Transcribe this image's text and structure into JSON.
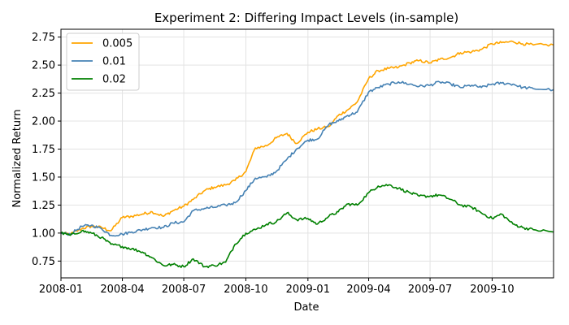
{
  "chart_data": {
    "type": "line",
    "title": "Experiment 2: Differing Impact Levels (in-sample)",
    "xlabel": "Date",
    "ylabel": "Normalized Return",
    "xlim": [
      "2008-01-01",
      "2009-12-31"
    ],
    "ylim": [
      0.6,
      2.82
    ],
    "grid": true,
    "legend_position": "top-left",
    "x_ticks": [
      {
        "date": "2008-01-01",
        "label": "2008-01"
      },
      {
        "date": "2008-04-01",
        "label": "2008-04"
      },
      {
        "date": "2008-07-01",
        "label": "2008-07"
      },
      {
        "date": "2008-10-01",
        "label": "2008-10"
      },
      {
        "date": "2009-01-01",
        "label": "2009-01"
      },
      {
        "date": "2009-04-01",
        "label": "2009-04"
      },
      {
        "date": "2009-07-01",
        "label": "2009-07"
      },
      {
        "date": "2009-10-01",
        "label": "2009-10"
      }
    ],
    "y_ticks": [
      {
        "value": 0.75,
        "label": "0.75"
      },
      {
        "value": 1.0,
        "label": "1.00"
      },
      {
        "value": 1.25,
        "label": "1.25"
      },
      {
        "value": 1.5,
        "label": "1.50"
      },
      {
        "value": 1.75,
        "label": "1.75"
      },
      {
        "value": 2.0,
        "label": "2.00"
      },
      {
        "value": 2.25,
        "label": "2.25"
      },
      {
        "value": 2.5,
        "label": "2.50"
      },
      {
        "value": 2.75,
        "label": "2.75"
      }
    ],
    "series": [
      {
        "name": "0.005",
        "color": "#ffa500",
        "x": [
          "2008-01-01",
          "2008-01-15",
          "2008-02-01",
          "2008-02-15",
          "2008-03-01",
          "2008-03-15",
          "2008-04-01",
          "2008-04-15",
          "2008-05-01",
          "2008-05-15",
          "2008-06-01",
          "2008-06-15",
          "2008-07-01",
          "2008-07-15",
          "2008-08-01",
          "2008-08-15",
          "2008-09-01",
          "2008-09-15",
          "2008-10-01",
          "2008-10-15",
          "2008-11-01",
          "2008-11-15",
          "2008-12-01",
          "2008-12-15",
          "2009-01-01",
          "2009-01-15",
          "2009-02-01",
          "2009-02-15",
          "2009-03-01",
          "2009-03-15",
          "2009-04-01",
          "2009-04-15",
          "2009-05-01",
          "2009-05-15",
          "2009-06-01",
          "2009-06-15",
          "2009-07-01",
          "2009-07-15",
          "2009-08-01",
          "2009-08-15",
          "2009-09-01",
          "2009-09-15",
          "2009-10-01",
          "2009-10-15",
          "2009-11-01",
          "2009-11-15",
          "2009-12-01",
          "2009-12-31"
        ],
        "values": [
          1.0,
          0.99,
          1.04,
          1.06,
          1.05,
          1.02,
          1.14,
          1.15,
          1.17,
          1.19,
          1.15,
          1.2,
          1.24,
          1.3,
          1.38,
          1.41,
          1.43,
          1.47,
          1.55,
          1.76,
          1.78,
          1.85,
          1.89,
          1.8,
          1.9,
          1.93,
          1.95,
          2.05,
          2.1,
          2.17,
          2.38,
          2.45,
          2.47,
          2.48,
          2.52,
          2.54,
          2.52,
          2.55,
          2.57,
          2.61,
          2.62,
          2.64,
          2.69,
          2.7,
          2.71,
          2.69,
          2.68,
          2.68
        ]
      },
      {
        "name": "0.01",
        "color": "#4682b4",
        "x": [
          "2008-01-01",
          "2008-01-15",
          "2008-02-01",
          "2008-02-15",
          "2008-03-01",
          "2008-03-15",
          "2008-04-01",
          "2008-04-15",
          "2008-05-01",
          "2008-05-15",
          "2008-06-01",
          "2008-06-15",
          "2008-07-01",
          "2008-07-15",
          "2008-08-01",
          "2008-08-15",
          "2008-09-01",
          "2008-09-15",
          "2008-10-01",
          "2008-10-15",
          "2008-11-01",
          "2008-11-15",
          "2008-12-01",
          "2008-12-15",
          "2009-01-01",
          "2009-01-15",
          "2009-02-01",
          "2009-02-15",
          "2009-03-01",
          "2009-03-15",
          "2009-04-01",
          "2009-04-15",
          "2009-05-01",
          "2009-05-15",
          "2009-06-01",
          "2009-06-15",
          "2009-07-01",
          "2009-07-15",
          "2009-08-01",
          "2009-08-15",
          "2009-09-01",
          "2009-09-15",
          "2009-10-01",
          "2009-10-15",
          "2009-11-01",
          "2009-11-15",
          "2009-12-01",
          "2009-12-31"
        ],
        "values": [
          1.0,
          0.99,
          1.06,
          1.07,
          1.04,
          0.98,
          0.99,
          1.01,
          1.03,
          1.05,
          1.05,
          1.09,
          1.1,
          1.2,
          1.22,
          1.23,
          1.25,
          1.27,
          1.38,
          1.49,
          1.5,
          1.55,
          1.66,
          1.75,
          1.83,
          1.84,
          1.97,
          2.0,
          2.05,
          2.08,
          2.26,
          2.3,
          2.33,
          2.35,
          2.33,
          2.31,
          2.32,
          2.35,
          2.33,
          2.3,
          2.32,
          2.3,
          2.33,
          2.34,
          2.33,
          2.3,
          2.29,
          2.28
        ]
      },
      {
        "name": "0.02",
        "color": "#008000",
        "x": [
          "2008-01-01",
          "2008-01-15",
          "2008-02-01",
          "2008-02-15",
          "2008-03-01",
          "2008-03-15",
          "2008-04-01",
          "2008-04-15",
          "2008-05-01",
          "2008-05-15",
          "2008-06-01",
          "2008-06-15",
          "2008-07-01",
          "2008-07-15",
          "2008-08-01",
          "2008-08-15",
          "2008-09-01",
          "2008-09-15",
          "2008-10-01",
          "2008-10-15",
          "2008-11-01",
          "2008-11-15",
          "2008-12-01",
          "2008-12-15",
          "2009-01-01",
          "2009-01-15",
          "2009-02-01",
          "2009-02-15",
          "2009-03-01",
          "2009-03-15",
          "2009-04-01",
          "2009-04-15",
          "2009-05-01",
          "2009-05-15",
          "2009-06-01",
          "2009-06-15",
          "2009-07-01",
          "2009-07-15",
          "2009-08-01",
          "2009-08-15",
          "2009-09-01",
          "2009-09-15",
          "2009-10-01",
          "2009-10-15",
          "2009-11-01",
          "2009-11-15",
          "2009-12-01",
          "2009-12-31"
        ],
        "values": [
          1.0,
          0.98,
          1.02,
          1.0,
          0.96,
          0.9,
          0.88,
          0.86,
          0.83,
          0.78,
          0.71,
          0.72,
          0.7,
          0.77,
          0.7,
          0.71,
          0.74,
          0.9,
          1.0,
          1.03,
          1.08,
          1.1,
          1.18,
          1.12,
          1.13,
          1.08,
          1.15,
          1.19,
          1.26,
          1.25,
          1.36,
          1.42,
          1.43,
          1.4,
          1.36,
          1.33,
          1.33,
          1.34,
          1.3,
          1.25,
          1.23,
          1.18,
          1.13,
          1.17,
          1.08,
          1.05,
          1.03,
          1.01
        ]
      }
    ]
  }
}
